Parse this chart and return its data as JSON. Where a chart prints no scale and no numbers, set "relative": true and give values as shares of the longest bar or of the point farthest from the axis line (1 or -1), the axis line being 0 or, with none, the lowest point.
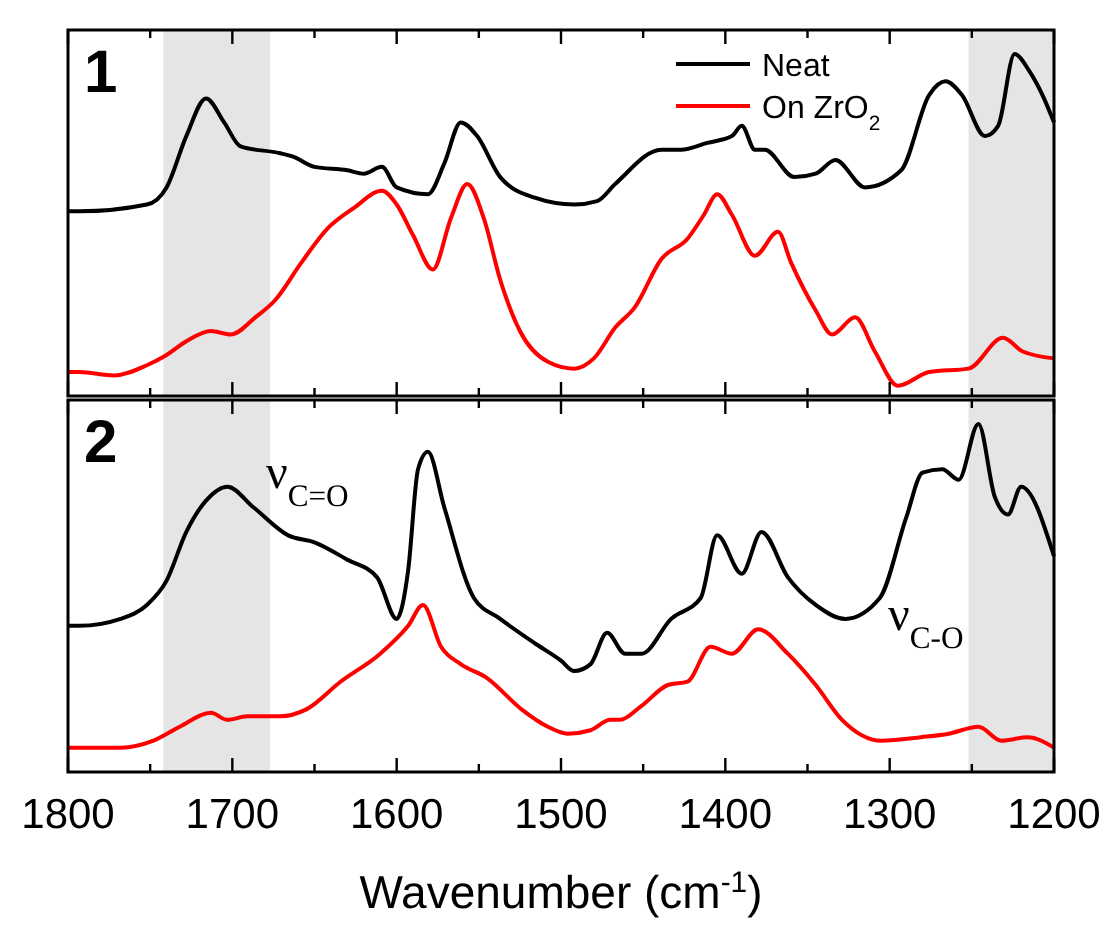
{
  "chart_data": [
    {
      "type": "line",
      "relative": true,
      "annotations": [
        "1"
      ],
      "legend": "top right",
      "tick_labels": false,
      "line_style": "solid",
      "marker": "none",
      "xlim": [
        1800,
        1200
      ],
      "xticks": [
        {
          "value": 1800,
          "label": null
        },
        {
          "value": 1750,
          "label": null
        },
        {
          "value": 1700,
          "label": null
        },
        {
          "value": 1650,
          "label": null
        },
        {
          "value": 1600,
          "label": null
        },
        {
          "value": 1550,
          "label": null
        },
        {
          "value": 1500,
          "label": null
        },
        {
          "value": 1450,
          "label": null
        },
        {
          "value": 1400,
          "label": null
        },
        {
          "value": 1350,
          "label": null
        },
        {
          "value": 1300,
          "label": null
        },
        {
          "value": 1250,
          "label": null
        },
        {
          "value": 1200,
          "label": null
        }
      ],
      "bands": [
        {
          "axis": "x",
          "from": 1742,
          "to": 1677,
          "color": "#e5e5e5"
        },
        {
          "axis": "x",
          "from": 1252,
          "to": 1200,
          "color": "#e5e5e5"
        }
      ],
      "series": [
        {
          "name": "Neat",
          "color": "#000000",
          "x": [
            1800,
            1793,
            1752,
            1740,
            1728,
            1716,
            1705,
            1695,
            1671,
            1663,
            1650,
            1630,
            1620,
            1609,
            1600,
            1581,
            1571,
            1561,
            1551,
            1537,
            1516,
            1492,
            1478,
            1467,
            1439,
            1427,
            1411,
            1396,
            1390,
            1382,
            1376,
            1358,
            1345,
            1333,
            1315,
            1293,
            1276,
            1266,
            1256,
            1242,
            1234,
            1224,
            1215,
            1207,
            1200
          ],
          "values": [
            0.54,
            0.54,
            0.56,
            0.61,
            0.76,
            0.87,
            0.8,
            0.73,
            0.71,
            0.7,
            0.67,
            0.66,
            0.65,
            0.67,
            0.61,
            0.59,
            0.68,
            0.8,
            0.76,
            0.64,
            0.58,
            0.56,
            0.57,
            0.62,
            0.72,
            0.72,
            0.74,
            0.76,
            0.79,
            0.72,
            0.72,
            0.64,
            0.65,
            0.69,
            0.61,
            0.66,
            0.88,
            0.92,
            0.88,
            0.76,
            0.79,
            1,
            0.95,
            0.88,
            0.8
          ]
        },
        {
          "name": "On ZrO$_{2}$",
          "color": "#ff0000",
          "x": [
            1800,
            1793,
            1772,
            1752,
            1740,
            1728,
            1713,
            1701,
            1686,
            1674,
            1658,
            1642,
            1626,
            1609,
            1600,
            1590,
            1578,
            1567,
            1557,
            1547,
            1537,
            1525,
            1508,
            1492,
            1480,
            1467,
            1455,
            1439,
            1423,
            1413,
            1405,
            1396,
            1382,
            1368,
            1360,
            1345,
            1335,
            1321,
            1309,
            1295,
            1276,
            1252,
            1231,
            1219,
            1200
          ],
          "values": [
            0.07,
            0.07,
            0.06,
            0.09,
            0.12,
            0.16,
            0.19,
            0.18,
            0.23,
            0.28,
            0.39,
            0.49,
            0.55,
            0.6,
            0.56,
            0.47,
            0.37,
            0.52,
            0.62,
            0.52,
            0.34,
            0.19,
            0.1,
            0.08,
            0.11,
            0.2,
            0.26,
            0.4,
            0.46,
            0.53,
            0.59,
            0.53,
            0.41,
            0.48,
            0.39,
            0.25,
            0.18,
            0.23,
            0.13,
            0.03,
            0.07,
            0.08,
            0.17,
            0.13,
            0.11
          ]
        }
      ]
    },
    {
      "type": "line",
      "relative": true,
      "annotations": [
        "2",
        "ν$_{C=O}$",
        "ν$_{C-O}$"
      ],
      "legend": false,
      "tick_labels": "x",
      "line_style": "solid",
      "marker": "none",
      "xlabel": "Wavenumber (cm$^{-1}$)",
      "xlim": [
        1800,
        1200
      ],
      "xticks": [
        1800,
        {
          "value": 1750,
          "label": null
        },
        1700,
        {
          "value": 1650,
          "label": null
        },
        1600,
        {
          "value": 1550,
          "label": null
        },
        1500,
        {
          "value": 1450,
          "label": null
        },
        1400,
        {
          "value": 1350,
          "label": null
        },
        1300,
        {
          "value": 1250,
          "label": null
        },
        1200
      ],
      "bands": [
        {
          "axis": "x",
          "from": 1742,
          "to": 1677,
          "color": "#e5e5e5"
        },
        {
          "axis": "x",
          "from": 1252,
          "to": 1200,
          "color": "#e5e5e5"
        }
      ],
      "series": [
        {
          "color": "#000000",
          "x": [
            1800,
            1793,
            1768,
            1752,
            1740,
            1728,
            1716,
            1703,
            1687,
            1666,
            1650,
            1630,
            1612,
            1600,
            1593,
            1587,
            1581,
            1571,
            1553,
            1537,
            1516,
            1500,
            1492,
            1482,
            1472,
            1461,
            1451,
            1433,
            1415,
            1405,
            1390,
            1378,
            1362,
            1345,
            1327,
            1306,
            1290,
            1280,
            1268,
            1258,
            1246,
            1236,
            1228,
            1220,
            1200
          ],
          "values": [
            0.42,
            0.42,
            0.44,
            0.48,
            0.55,
            0.69,
            0.78,
            0.82,
            0.76,
            0.68,
            0.66,
            0.61,
            0.56,
            0.44,
            0.58,
            0.87,
            0.92,
            0.76,
            0.5,
            0.44,
            0.37,
            0.32,
            0.29,
            0.31,
            0.4,
            0.34,
            0.34,
            0.44,
            0.5,
            0.68,
            0.57,
            0.69,
            0.56,
            0.48,
            0.44,
            0.5,
            0.73,
            0.86,
            0.87,
            0.84,
            1,
            0.79,
            0.74,
            0.82,
            0.62
          ]
        },
        {
          "color": "#ff0000",
          "x": [
            1800,
            1793,
            1768,
            1748,
            1732,
            1713,
            1703,
            1691,
            1671,
            1655,
            1634,
            1610,
            1593,
            1584,
            1573,
            1561,
            1545,
            1524,
            1508,
            1496,
            1482,
            1470,
            1464,
            1451,
            1435,
            1423,
            1409,
            1396,
            1380,
            1362,
            1345,
            1329,
            1305,
            1281,
            1264,
            1246,
            1232,
            1216,
            1200
          ],
          "values": [
            0.07,
            0.07,
            0.07,
            0.09,
            0.13,
            0.17,
            0.15,
            0.16,
            0.16,
            0.18,
            0.26,
            0.34,
            0.42,
            0.48,
            0.36,
            0.31,
            0.27,
            0.18,
            0.13,
            0.11,
            0.12,
            0.15,
            0.15,
            0.19,
            0.25,
            0.26,
            0.36,
            0.34,
            0.41,
            0.34,
            0.25,
            0.15,
            0.09,
            0.1,
            0.11,
            0.13,
            0.09,
            0.1,
            0.07
          ]
        }
      ]
    }
  ]
}
